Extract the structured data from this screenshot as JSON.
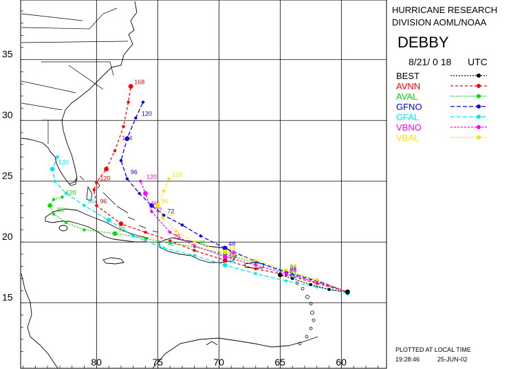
{
  "header": {
    "org_line1": "HURRICANE RESEARCH",
    "org_line2": "DIVISION AOML/NOAA",
    "storm_name": "DEBBY",
    "date": "8/21/ 0 18",
    "tz": "UTC"
  },
  "footer": {
    "note": "PLOTTED AT LOCAL TIME",
    "time": "19:28:46",
    "date": "25-JUN-02"
  },
  "axes": {
    "lat_ticks": [
      "35",
      "30",
      "25",
      "20",
      "15"
    ],
    "lon_ticks": [
      "80",
      "75",
      "70",
      "65",
      "60"
    ]
  },
  "legend": [
    {
      "name": "BEST",
      "color": "#000000",
      "dash": "2,2"
    },
    {
      "name": "AVNN",
      "color": "#ff0000",
      "dash": "4,3"
    },
    {
      "name": "AVAL",
      "color": "#00dd00",
      "dash": "2,2"
    },
    {
      "name": "GFNO",
      "color": "#0000ee",
      "dash": "6,3"
    },
    {
      "name": "GFAL",
      "color": "#00e5ee",
      "dash": "6,3"
    },
    {
      "name": "VBNO",
      "color": "#ff00ff",
      "dash": "3,2"
    },
    {
      "name": "VBAL",
      "color": "#ffe000",
      "dash": "2,2"
    }
  ],
  "tracks": [
    {
      "name": "AVNN",
      "color": "#ff0000",
      "dash": "4,3",
      "points": [
        [
          -59.5,
          15.9
        ],
        [
          -62,
          16.6
        ],
        [
          -64.5,
          17.3
        ],
        [
          -67,
          17.8
        ],
        [
          -69.5,
          18.5
        ],
        [
          -72,
          19.3
        ],
        [
          -74,
          20.1
        ],
        [
          -76,
          20.8
        ],
        [
          -78,
          21.5
        ],
        [
          -80,
          23.0
        ],
        [
          -80.2,
          24.3
        ],
        [
          -80,
          24.9
        ],
        [
          -79.2,
          26.0
        ],
        [
          -78.5,
          27.5
        ],
        [
          -77.8,
          29.5
        ],
        [
          -77.4,
          31.5
        ],
        [
          -77.2,
          32.8
        ]
      ],
      "labels": [
        {
          "text": "24",
          "at": [
            -64.5,
            17.3
          ]
        },
        {
          "text": "48",
          "at": [
            -69.5,
            18.5
          ]
        },
        {
          "text": "72",
          "at": [
            -74,
            20.1
          ]
        },
        {
          "text": "96",
          "at": [
            -80,
            23.0
          ]
        },
        {
          "text": "120",
          "at": [
            -80,
            24.9
          ]
        },
        {
          "text": "144",
          "at": [
            -78.2,
            28.2
          ]
        },
        {
          "text": "168",
          "at": [
            -77.2,
            32.8
          ]
        }
      ]
    },
    {
      "name": "AVAL",
      "color": "#00dd00",
      "dash": "2,2",
      "points": [
        [
          -59.5,
          15.9
        ],
        [
          -62,
          16.9
        ],
        [
          -64.5,
          17.6
        ],
        [
          -67,
          18.3
        ],
        [
          -69.5,
          19.0
        ],
        [
          -72,
          19.6
        ],
        [
          -74,
          19.9
        ],
        [
          -76,
          20.3
        ],
        [
          -78.5,
          20.7
        ],
        [
          -81,
          21.0
        ],
        [
          -82.5,
          21.6
        ],
        [
          -83.5,
          22.3
        ],
        [
          -83.8,
          23.0
        ],
        [
          -83.5,
          23.5
        ],
        [
          -82.8,
          23.7
        ]
      ],
      "labels": [
        {
          "text": "24",
          "at": [
            -64.5,
            17.6
          ]
        },
        {
          "text": "48",
          "at": [
            -72,
            19.6
          ]
        },
        {
          "text": "72",
          "at": [
            -78.5,
            20.7
          ]
        },
        {
          "text": "96",
          "at": [
            -83.5,
            22.3
          ]
        },
        {
          "text": "120",
          "at": [
            -82.8,
            23.7
          ]
        }
      ]
    },
    {
      "name": "GFNO",
      "color": "#0000ee",
      "dash": "6,3",
      "points": [
        [
          -59.5,
          15.9
        ],
        [
          -62,
          16.8
        ],
        [
          -64.5,
          17.5
        ],
        [
          -67,
          18.4
        ],
        [
          -69.5,
          19.5
        ],
        [
          -71.5,
          20.5
        ],
        [
          -73,
          21.4
        ],
        [
          -74.5,
          22.2
        ],
        [
          -75.5,
          23.0
        ],
        [
          -76.5,
          24.0
        ],
        [
          -77.5,
          25.2
        ],
        [
          -78.0,
          26.7
        ],
        [
          -77.5,
          28.5
        ],
        [
          -76.8,
          30.2
        ],
        [
          -76.2,
          31.5
        ]
      ],
      "labels": [
        {
          "text": "24",
          "at": [
            -64.5,
            17.5
          ]
        },
        {
          "text": "48",
          "at": [
            -69.5,
            19.5
          ]
        },
        {
          "text": "72",
          "at": [
            -74.5,
            22.2
          ]
        },
        {
          "text": "96",
          "at": [
            -77.5,
            25.4
          ]
        },
        {
          "text": "120",
          "at": [
            -76.6,
            30.2
          ]
        }
      ]
    },
    {
      "name": "GFAL",
      "color": "#00e5ee",
      "dash": "6,3",
      "points": [
        [
          -59.5,
          15.8
        ],
        [
          -62,
          16.3
        ],
        [
          -64.5,
          16.8
        ],
        [
          -67,
          17.4
        ],
        [
          -69.5,
          18.1
        ],
        [
          -72,
          18.9
        ],
        [
          -74.5,
          19.5
        ],
        [
          -77,
          20.5
        ],
        [
          -79,
          21.8
        ],
        [
          -81,
          23.0
        ],
        [
          -82.5,
          24.0
        ],
        [
          -83.4,
          25.0
        ],
        [
          -83.6,
          26.0
        ],
        [
          -83.2,
          27.0
        ]
      ],
      "labels": [
        {
          "text": "24",
          "at": [
            -64.5,
            16.8
          ]
        },
        {
          "text": "48",
          "at": [
            -69.5,
            18.1
          ]
        },
        {
          "text": "72",
          "at": [
            -74.5,
            19.5
          ]
        },
        {
          "text": "96",
          "at": [
            -81,
            23.0
          ]
        },
        {
          "text": "120",
          "at": [
            -83.4,
            26.2
          ]
        }
      ]
    },
    {
      "name": "VBNO",
      "color": "#ff00ff",
      "dash": "3,2",
      "points": [
        [
          -59.5,
          15.9
        ],
        [
          -62,
          16.7
        ],
        [
          -64.5,
          17.4
        ],
        [
          -67,
          18.1
        ],
        [
          -69.5,
          18.8
        ],
        [
          -72,
          19.7
        ],
        [
          -74,
          20.8
        ],
        [
          -75.5,
          22.5
        ],
        [
          -76,
          24.0
        ],
        [
          -76.4,
          25.0
        ]
      ],
      "labels": [
        {
          "text": "24",
          "at": [
            -64.5,
            17.4
          ]
        },
        {
          "text": "48",
          "at": [
            -69.5,
            18.8
          ]
        },
        {
          "text": "72",
          "at": [
            -75.5,
            22.3
          ]
        },
        {
          "text": "96",
          "at": [
            -75.8,
            22.8
          ]
        },
        {
          "text": "120",
          "at": [
            -76.2,
            25.0
          ]
        }
      ]
    },
    {
      "name": "VBAL",
      "color": "#ffe000",
      "dash": "2,2",
      "points": [
        [
          -59.5,
          15.9
        ],
        [
          -62,
          16.9
        ],
        [
          -64.5,
          17.7
        ],
        [
          -67,
          18.5
        ],
        [
          -69.5,
          19.2
        ],
        [
          -72,
          20.0
        ],
        [
          -73.5,
          20.9
        ],
        [
          -74.6,
          22.0
        ],
        [
          -75,
          23.0
        ],
        [
          -74.5,
          24.2
        ],
        [
          -74.1,
          25.2
        ]
      ],
      "labels": [
        {
          "text": "24",
          "at": [
            -64.5,
            17.7
          ]
        },
        {
          "text": "48",
          "at": [
            -69.5,
            19.2
          ]
        },
        {
          "text": "72",
          "at": [
            -74.6,
            22.0
          ]
        },
        {
          "text": "96",
          "at": [
            -75,
            23.0
          ]
        },
        {
          "text": "120",
          "at": [
            -74.1,
            25.2
          ]
        }
      ]
    },
    {
      "name": "BEST",
      "color": "#000000",
      "dash": "2,2",
      "points": [
        [
          -59.5,
          15.9
        ],
        [
          -61,
          16.1
        ],
        [
          -62.5,
          16.5
        ],
        [
          -64,
          17.0
        ],
        [
          -65,
          17.3
        ]
      ],
      "labels": []
    }
  ]
}
